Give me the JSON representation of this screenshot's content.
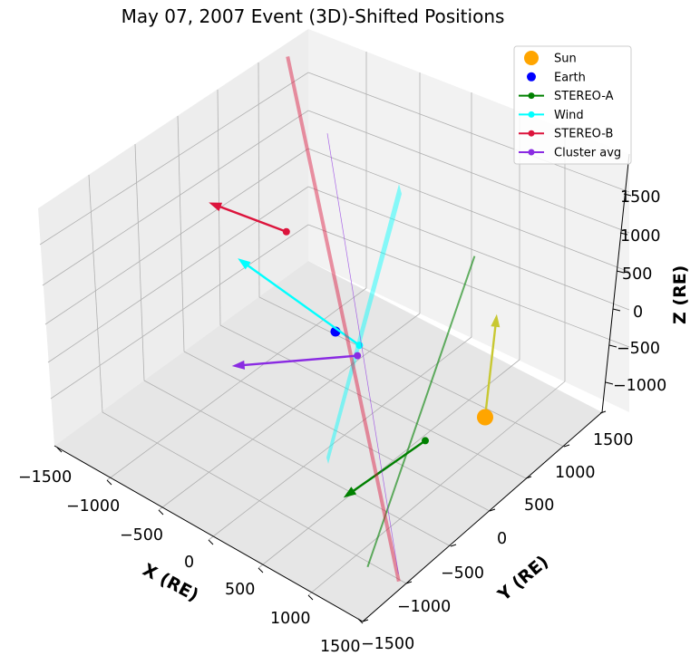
{
  "chart_data": {
    "type": "3d-scatter",
    "title": "May 07, 2007 Event (3D)-Shifted Positions",
    "xlabel": "X (RE)",
    "ylabel": "Y (RE)",
    "zlabel": "Z (RE)",
    "xlim": [
      -1500,
      1500
    ],
    "ylim": [
      -1500,
      1500
    ],
    "zlim": [
      -1300,
      1700
    ],
    "xticks": [
      "−1500",
      "−1000",
      "−500",
      "0",
      "500",
      "1000",
      "1500"
    ],
    "yticks": [
      "−1500",
      "−1000",
      "−500",
      "0",
      "500",
      "1000",
      "1500"
    ],
    "zticks": [
      "−1000",
      "−500",
      "0",
      "500",
      "1000",
      "1500"
    ],
    "legend_position": "top-right",
    "series": [
      {
        "name": "Sun",
        "color": "#ffa500",
        "marker": "circle-large",
        "point": [
          1500,
          0,
          0
        ]
      },
      {
        "name": "Earth",
        "color": "#0000ff",
        "marker": "circle",
        "point": [
          0,
          0,
          0
        ]
      },
      {
        "name": "STEREO-A",
        "color": "#008000",
        "marker": "circle-line",
        "point": [
          1300,
          -500,
          0
        ]
      },
      {
        "name": "Wind",
        "color": "#00ffff",
        "marker": "circle-line",
        "point": [
          240,
          0,
          0
        ]
      },
      {
        "name": "STEREO-B",
        "color": "#dc143c",
        "marker": "circle-line",
        "point": [
          -800,
          400,
          350
        ]
      },
      {
        "name": "Cluster avg",
        "color": "#8a2be2",
        "marker": "circle-line",
        "point": [
          300,
          -100,
          0
        ]
      }
    ]
  }
}
